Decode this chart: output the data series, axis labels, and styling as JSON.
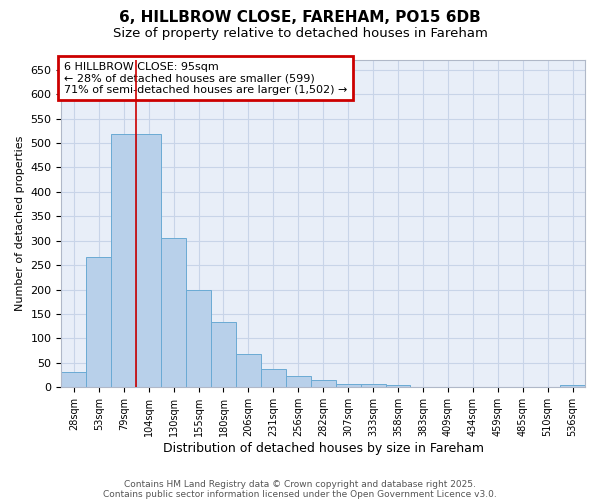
{
  "title_line1": "6, HILLBROW CLOSE, FAREHAM, PO15 6DB",
  "title_line2": "Size of property relative to detached houses in Fareham",
  "xlabel": "Distribution of detached houses by size in Fareham",
  "ylabel": "Number of detached properties",
  "categories": [
    "28sqm",
    "53sqm",
    "79sqm",
    "104sqm",
    "130sqm",
    "155sqm",
    "180sqm",
    "206sqm",
    "231sqm",
    "256sqm",
    "282sqm",
    "307sqm",
    "333sqm",
    "358sqm",
    "383sqm",
    "409sqm",
    "434sqm",
    "459sqm",
    "485sqm",
    "510sqm",
    "536sqm"
  ],
  "values": [
    31,
    267,
    519,
    519,
    305,
    199,
    134,
    68,
    38,
    23,
    15,
    7,
    6,
    4,
    1,
    0,
    1,
    0,
    0,
    0,
    5
  ],
  "bar_color": "#b8d0ea",
  "bar_edge_color": "#6aaad4",
  "annotation_box_text": "6 HILLBROW CLOSE: 95sqm\n← 28% of detached houses are smaller (599)\n71% of semi-detached houses are larger (1,502) →",
  "annotation_box_color": "#ffffff",
  "annotation_box_edge_color": "#cc0000",
  "vline_x_after_bar": 2,
  "vline_color": "#cc0000",
  "ylim": [
    0,
    670
  ],
  "yticks": [
    0,
    50,
    100,
    150,
    200,
    250,
    300,
    350,
    400,
    450,
    500,
    550,
    600,
    650
  ],
  "grid_color": "#c8d4e8",
  "plot_bg_color": "#e8eef8",
  "fig_bg_color": "#ffffff",
  "footer_text1": "Contains HM Land Registry data © Crown copyright and database right 2025.",
  "footer_text2": "Contains public sector information licensed under the Open Government Licence v3.0."
}
